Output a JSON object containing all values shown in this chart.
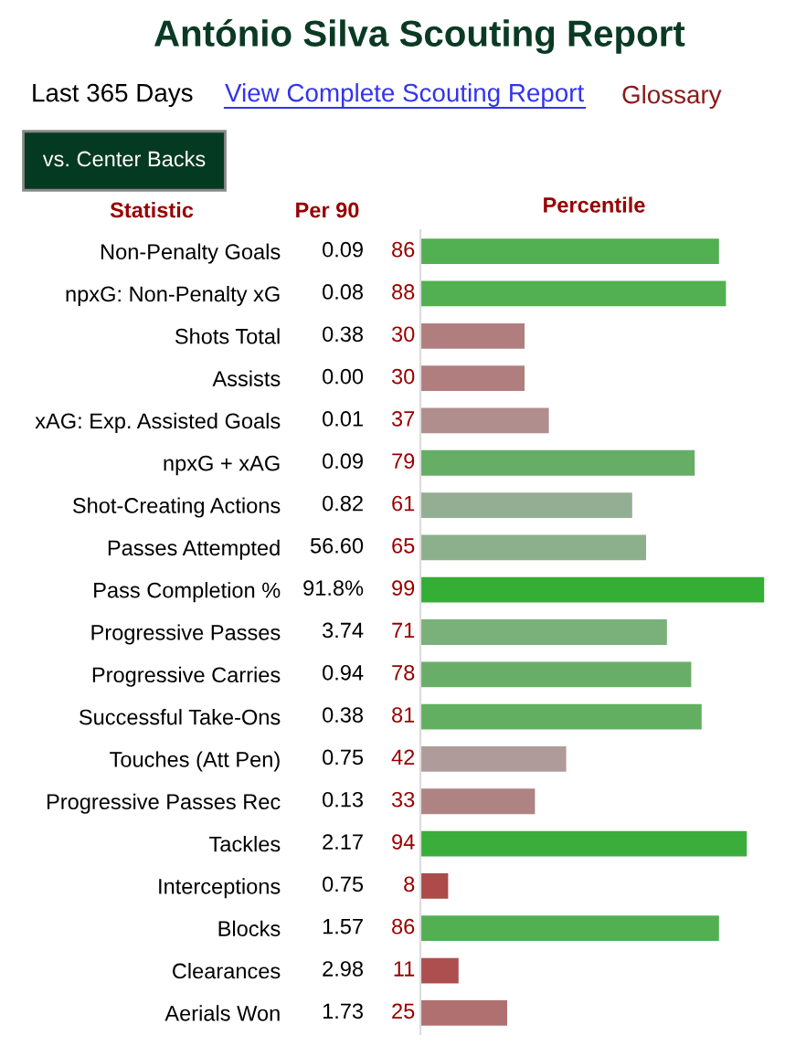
{
  "chart_data": {
    "type": "bar",
    "orientation": "horizontal",
    "title": "António Silva Scouting Report",
    "subtitle": "Last 365 Days",
    "xlabel": "Percentile",
    "categories": [
      "Non-Penalty Goals",
      "npxG: Non-Penalty xG",
      "Shots Total",
      "Assists",
      "xAG: Exp. Assisted Goals",
      "npxG + xAG",
      "Shot-Creating Actions",
      "Passes Attempted",
      "Pass Completion %",
      "Progressive Passes",
      "Progressive Carries",
      "Successful Take-Ons",
      "Touches (Att Pen)",
      "Progressive Passes Rec",
      "Tackles",
      "Interceptions",
      "Blocks",
      "Clearances",
      "Aerials Won"
    ],
    "values": [
      86,
      88,
      30,
      30,
      37,
      79,
      61,
      65,
      99,
      71,
      78,
      81,
      42,
      33,
      94,
      8,
      86,
      11,
      25
    ],
    "colors": [
      "#52b052",
      "#52b052",
      "#b07e7e",
      "#b07e7e",
      "#b08e8e",
      "#66ad66",
      "#94ae94",
      "#8cb08c",
      "#35ae35",
      "#7ab07a",
      "#68ae68",
      "#62af62",
      "#b09b9b",
      "#b08383",
      "#3aad3a",
      "#ad4a4a",
      "#52b052",
      "#ad4f4f",
      "#b07070"
    ],
    "xlim": [
      0,
      100
    ],
    "tick_labels": "y",
    "data_labels": true,
    "annotations": [
      "View Complete Scouting Report",
      "Glossary",
      "vs. Center Backs",
      "Statistic",
      "Per 90",
      "0.09",
      "0.08",
      "0.38",
      "0.00",
      "0.01",
      "0.09",
      "0.82",
      "56.60",
      "91.8%",
      "3.74",
      "0.94",
      "0.38",
      "0.75",
      "0.13",
      "2.17",
      "0.75",
      "1.57",
      "2.98",
      "1.73"
    ]
  }
}
